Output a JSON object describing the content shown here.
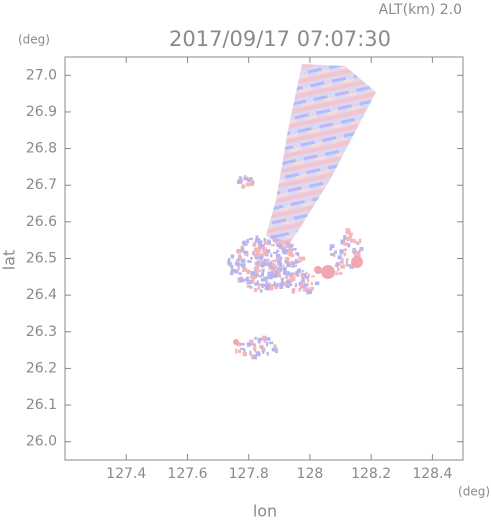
{
  "chart_data": {
    "type": "image",
    "title": "2017/09/17 07:07:30",
    "subtitle": "ALT(km) 2.0",
    "x_label": "lon",
    "y_label": "lat",
    "x_unit": "(deg)",
    "y_unit": "(deg)",
    "xlim": [
      127.2,
      128.5
    ],
    "xticks": [
      127.4,
      127.6,
      127.8,
      128.0,
      128.2,
      128.4
    ],
    "ylim": [
      25.95,
      27.05
    ],
    "yticks": [
      {
        "value": 26.0,
        "label": "26.0"
      },
      26.1,
      26.2,
      26.3,
      26.4,
      26.5,
      26.6,
      26.7,
      26.8,
      26.9,
      {
        "value": 27.0,
        "label": "27.0"
      }
    ]
  }
}
